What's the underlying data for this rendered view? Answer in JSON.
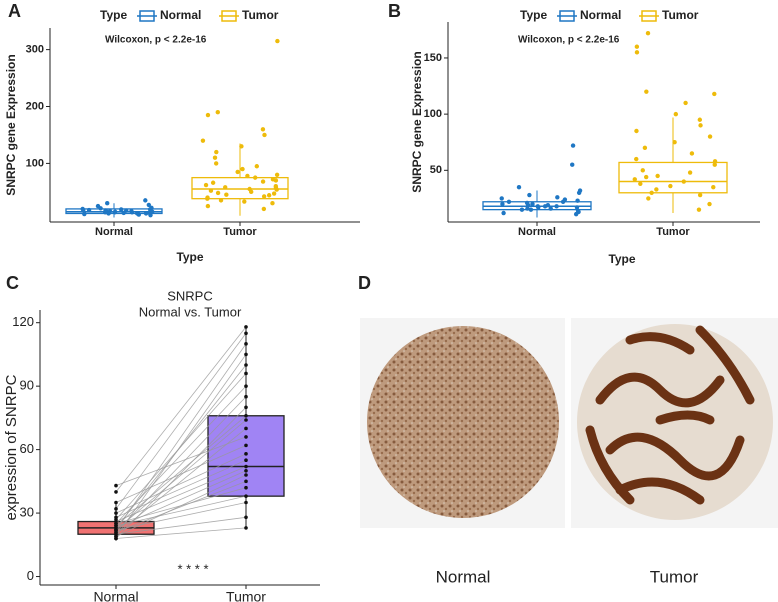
{
  "chart_data": [
    {
      "type": "box",
      "panel_label": "A",
      "legend_title": "Type",
      "annotation": "Wilcoxon, p < 2.2e-16",
      "ylabel": "SNRPC gene Expression",
      "xlabel": "Type",
      "categories": [
        "Normal",
        "Tumor"
      ],
      "ylim": [
        -3,
        338
      ],
      "yticks": [
        100,
        200,
        300
      ],
      "series": [
        {
          "name": "Normal",
          "color": "#1f77c4",
          "box": {
            "whislo": 5,
            "q1": 12,
            "med": 15,
            "q3": 20,
            "whishi": 30
          },
          "points": [
            14,
            16,
            12,
            18,
            20,
            15,
            11,
            13,
            17,
            22,
            25,
            9,
            14,
            16,
            19,
            30,
            35,
            12,
            15,
            18,
            13,
            21,
            10,
            16,
            14,
            27,
            17,
            12,
            19,
            15
          ]
        },
        {
          "name": "Tumor",
          "color": "#eebb0a",
          "box": {
            "whislo": 8,
            "q1": 38,
            "med": 55,
            "q3": 75,
            "whishi": 135
          },
          "points": [
            55,
            60,
            45,
            38,
            72,
            90,
            120,
            35,
            48,
            52,
            66,
            80,
            110,
            150,
            185,
            190,
            25,
            30,
            42,
            58,
            62,
            75,
            95,
            130,
            40,
            50,
            54,
            68,
            85,
            100,
            315,
            20,
            33,
            47,
            57,
            70,
            78,
            140,
            160,
            44
          ]
        }
      ]
    },
    {
      "type": "box",
      "panel_label": "B",
      "legend_title": "Type",
      "annotation": "Wilcoxon, p < 2.2e-16",
      "ylabel": "SNRPC gene Expression",
      "xlabel": "Type",
      "categories": [
        "Normal",
        "Tumor"
      ],
      "ylim": [
        4,
        182
      ],
      "yticks": [
        50,
        100,
        150
      ],
      "series": [
        {
          "name": "Normal",
          "color": "#1f77c4",
          "box": {
            "whislo": 8,
            "q1": 15,
            "med": 18,
            "q3": 22,
            "whishi": 32
          },
          "points": [
            18,
            20,
            15,
            22,
            25,
            17,
            12,
            19,
            16,
            30,
            35,
            14,
            21,
            18,
            23,
            28,
            55,
            72,
            13,
            20,
            17,
            15,
            24,
            19,
            26,
            11,
            16,
            22,
            18,
            32
          ]
        },
        {
          "name": "Tumor",
          "color": "#eebb0a",
          "box": {
            "whislo": 12,
            "q1": 30,
            "med": 40,
            "q3": 57,
            "whishi": 97
          },
          "points": [
            40,
            35,
            45,
            60,
            80,
            100,
            120,
            30,
            25,
            38,
            50,
            55,
            70,
            90,
            155,
            172,
            160,
            20,
            28,
            33,
            42,
            48,
            65,
            75,
            85,
            110,
            118,
            15,
            36,
            44,
            58,
            95
          ]
        }
      ]
    },
    {
      "type": "paired-box",
      "panel_label": "C",
      "title": "SNRPC",
      "subtitle": "Normal vs. Tumor",
      "ylabel": "expression of SNRPC",
      "annotation": "* * * *",
      "categories": [
        "Normal",
        "Tumor"
      ],
      "ylim": [
        -4,
        126
      ],
      "yticks": [
        0,
        30,
        60,
        90,
        120
      ],
      "series": [
        {
          "name": "Normal",
          "color": "#f07272",
          "box": {
            "whislo": 17,
            "q1": 20,
            "med": 23,
            "q3": 26,
            "whishi": 35
          },
          "points": [
            18,
            20,
            22,
            24,
            25,
            21,
            19,
            23,
            26,
            28,
            30,
            35,
            43,
            20,
            22,
            24,
            18,
            21,
            25,
            27,
            23,
            19,
            22,
            32,
            40
          ]
        },
        {
          "name": "Tumor",
          "color": "#a084f4",
          "box": {
            "whislo": 23,
            "q1": 38,
            "med": 52,
            "q3": 76,
            "whishi": 118
          },
          "points": [
            23,
            28,
            35,
            38,
            42,
            45,
            48,
            50,
            52,
            55,
            58,
            62,
            66,
            70,
            74,
            76,
            80,
            85,
            90,
            96,
            100,
            105,
            110,
            115,
            118
          ]
        }
      ]
    }
  ],
  "image_panel": {
    "panel_label": "D",
    "labels": [
      "Normal",
      "Tumor"
    ]
  }
}
